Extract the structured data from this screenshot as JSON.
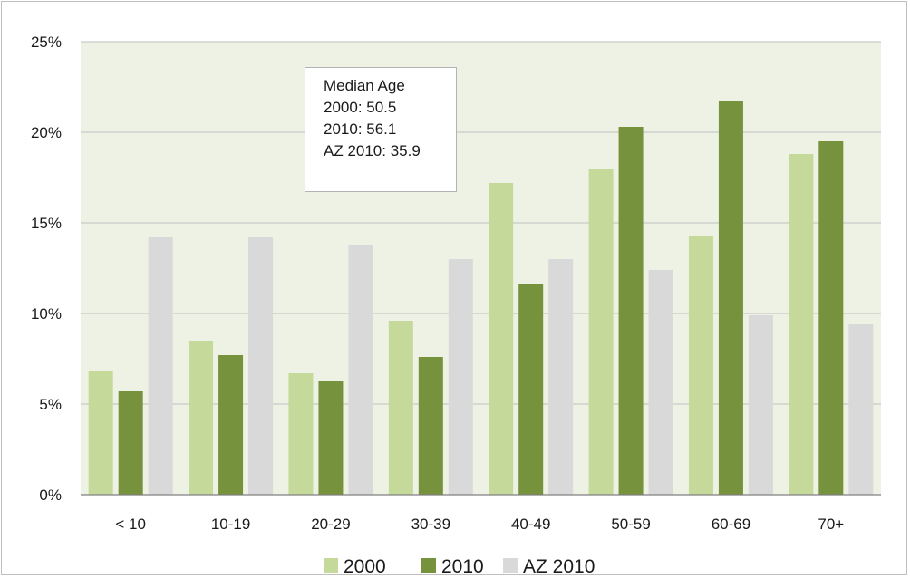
{
  "chart_data": {
    "type": "bar",
    "categories": [
      "< 10",
      "10-19",
      "20-29",
      "30-39",
      "40-49",
      "50-59",
      "60-69",
      "70+"
    ],
    "series": [
      {
        "name": "2000",
        "color": "#c5d99b",
        "values": [
          6.8,
          8.5,
          6.7,
          9.6,
          17.2,
          18.0,
          14.3,
          18.8
        ]
      },
      {
        "name": "2010",
        "color": "#76923c",
        "values": [
          5.7,
          7.7,
          6.3,
          7.6,
          11.6,
          20.3,
          21.7,
          19.5
        ]
      },
      {
        "name": "AZ 2010",
        "color": "#d9d9d9",
        "values": [
          14.2,
          14.2,
          13.8,
          13.0,
          13.0,
          12.4,
          9.9,
          9.4
        ]
      }
    ],
    "yticks": [
      "0%",
      "5%",
      "10%",
      "15%",
      "20%",
      "25%"
    ],
    "ylim": [
      0,
      25
    ],
    "grid": true,
    "legend_position": "bottom",
    "plot_background": "#eef2e4",
    "annotation": {
      "title": "Median Age",
      "lines": [
        "2000: 50.5",
        "2010: 56.1",
        "AZ 2010: 35.9"
      ]
    }
  }
}
